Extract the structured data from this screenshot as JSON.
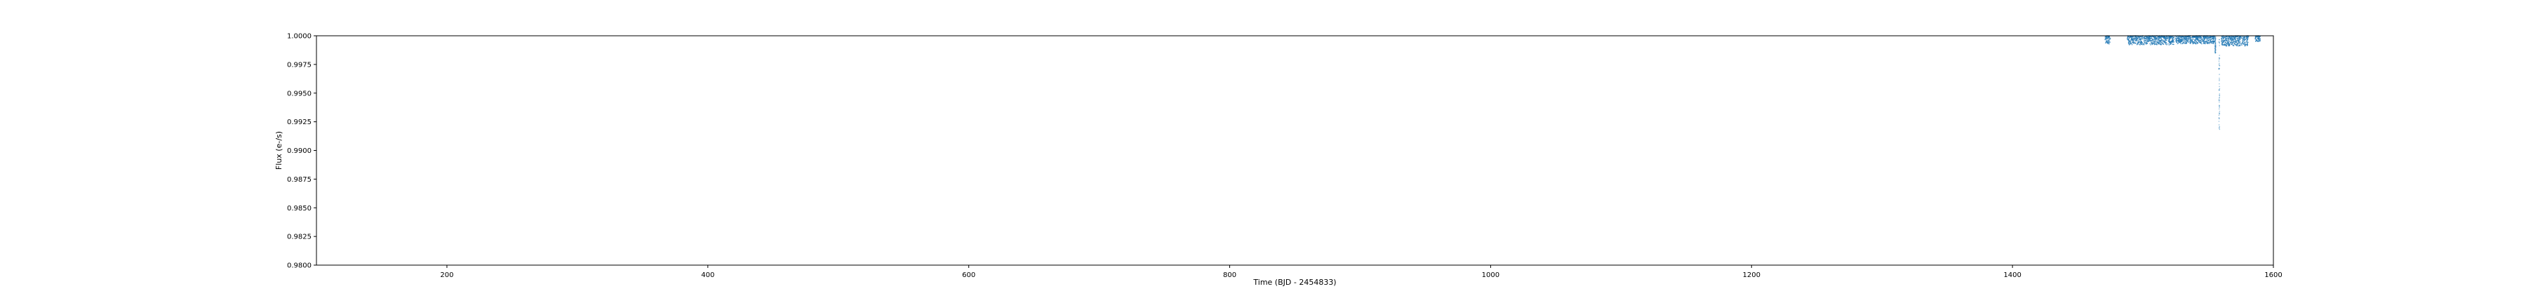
{
  "chart_data": {
    "type": "scatter",
    "title": "",
    "xlabel": "Time (BJD - 2454833)",
    "ylabel": "Flux (e-/s)",
    "xlim": [
      100,
      1600
    ],
    "ylim": [
      0.98,
      1.0
    ],
    "xticks": [
      200,
      400,
      600,
      800,
      1000,
      1200,
      1400,
      1600
    ],
    "xtick_labels": [
      "200",
      "400",
      "600",
      "800",
      "1000",
      "1200",
      "1400",
      "1600"
    ],
    "yticks": [
      1.0,
      0.9975,
      0.995,
      0.9925,
      0.99,
      0.9875,
      0.985,
      0.9825,
      0.98
    ],
    "ytick_labels": [
      "1.0000",
      "0.9975",
      "0.9950",
      "0.9925",
      "0.9900",
      "0.9875",
      "0.9850",
      "0.9825",
      "0.9800"
    ],
    "grid": false,
    "marker_color": "#1f77b4",
    "segments": [
      {
        "x_start": 1471,
        "x_end": 1475,
        "y_top": 1.0,
        "y_bottom": 0.9993
      },
      {
        "x_start": 1488,
        "x_end": 1524,
        "y_top": 1.0,
        "y_bottom": 0.9992
      },
      {
        "x_start": 1525,
        "x_end": 1555,
        "y_top": 1.0,
        "y_bottom": 0.9993
      },
      {
        "x_start": 1560,
        "x_end": 1581,
        "y_top": 1.0,
        "y_bottom": 0.9991
      },
      {
        "x_start": 1586,
        "x_end": 1590,
        "y_top": 1.0,
        "y_bottom": 0.9995
      }
    ],
    "dips": [
      {
        "x": 1555.5,
        "y_min": 0.9985
      },
      {
        "x": 1558.5,
        "y_min": 0.9918
      }
    ]
  }
}
